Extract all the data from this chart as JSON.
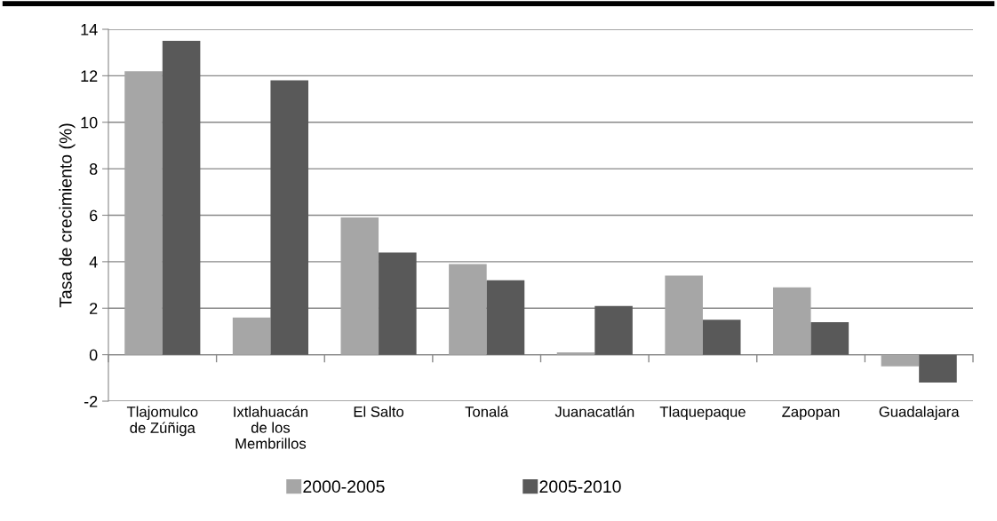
{
  "chart_data": {
    "type": "bar",
    "ylabel": "Tasa de crecimiento (%)",
    "categories": [
      "Tlajomulco\nde Zúñiga",
      "Ixtlahuacán\nde los\nMembrillos",
      "El Salto",
      "Tonalá",
      "Juanacatlán",
      "Tlaquepaque",
      "Zapopan",
      "Guadalajara"
    ],
    "series": [
      {
        "name": "2000-2005",
        "color": "#a6a6a6",
        "values": [
          12.2,
          1.6,
          5.9,
          3.9,
          0.1,
          3.4,
          2.9,
          -0.5
        ]
      },
      {
        "name": "2005-2010",
        "color": "#595959",
        "values": [
          13.5,
          11.8,
          4.4,
          3.2,
          2.1,
          1.5,
          1.4,
          -1.2
        ]
      }
    ],
    "ylim": [
      -2,
      14
    ],
    "yticks": [
      -2,
      0,
      2,
      4,
      6,
      8,
      10,
      12,
      14
    ],
    "grid": "y",
    "legend": "bottom"
  }
}
